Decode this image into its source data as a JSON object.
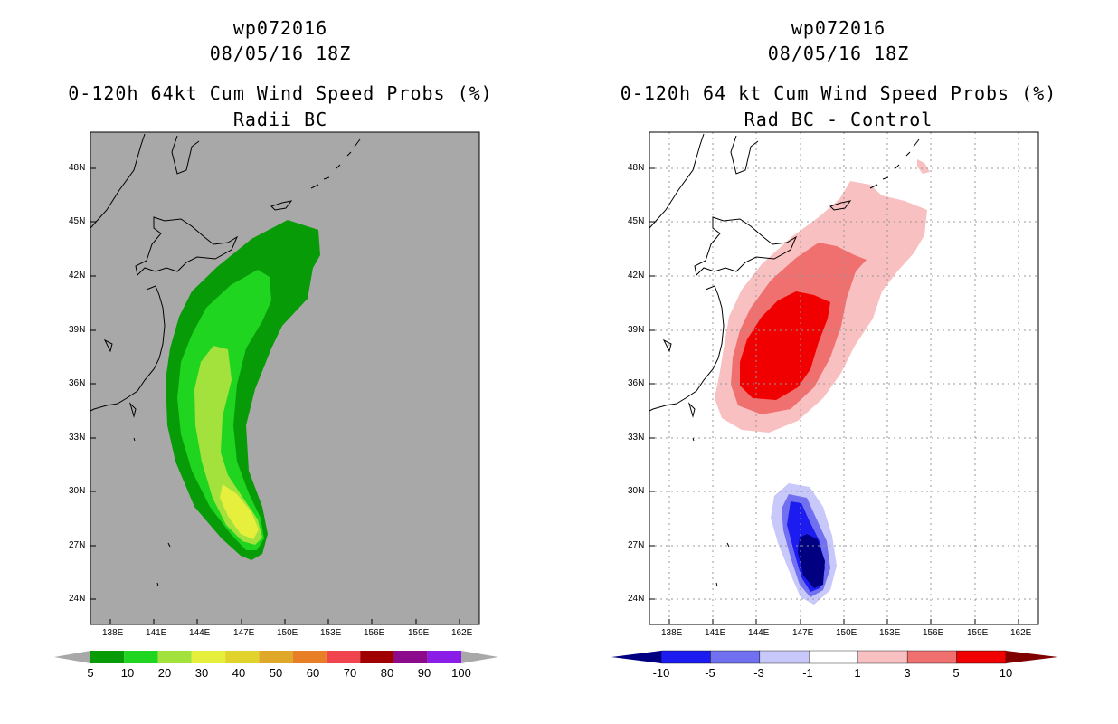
{
  "chart_data": [
    {
      "type": "heatmap",
      "title": [
        "wp072016",
        "08/05/16 18Z",
        "0-120h 64kt Cum Wind Speed Probs (%)",
        "Radii BC"
      ],
      "lon_ticks": [
        "138E",
        "141E",
        "144E",
        "147E",
        "150E",
        "153E",
        "156E",
        "159E",
        "162E"
      ],
      "lat_ticks": [
        "48N",
        "45N",
        "42N",
        "39N",
        "36N",
        "33N",
        "30N",
        "27N",
        "24N"
      ],
      "xlim": [
        137,
        163
      ],
      "ylim": [
        22.8,
        50.4
      ],
      "colorbar_levels": [
        "5",
        "10",
        "20",
        "30",
        "40",
        "50",
        "60",
        "70",
        "80",
        "90",
        "100"
      ],
      "colorbar_colors": [
        "#079b07",
        "#1fd51f",
        "#a3e23c",
        "#e6f03c",
        "#e2d22c",
        "#e0a828",
        "#e87f27",
        "#f0454f",
        "#a00000",
        "#8c0a8c",
        "#8a1ee6"
      ],
      "background_color": "#a8a8a8",
      "grid": false
    },
    {
      "type": "heatmap",
      "title": [
        "wp072016",
        "08/05/16 18Z",
        "0-120h 64 kt Cum Wind Speed Probs (%)",
        "Rad BC - Control"
      ],
      "lon_ticks": [
        "138E",
        "141E",
        "144E",
        "147E",
        "150E",
        "153E",
        "156E",
        "159E",
        "162E"
      ],
      "lat_ticks": [
        "48N",
        "45N",
        "42N",
        "39N",
        "36N",
        "33N",
        "30N",
        "27N",
        "24N"
      ],
      "xlim": [
        137,
        163
      ],
      "ylim": [
        22.8,
        50.4
      ],
      "colorbar_levels": [
        "-10",
        "-5",
        "-3",
        "-1",
        "1",
        "3",
        "5",
        "10"
      ],
      "colorbar_colors": [
        "#000080",
        "#1c1cf0",
        "#7070f0",
        "#c8c8fa",
        "#ffffff",
        "#f8c0c0",
        "#f07070",
        "#f00000",
        "#800000"
      ],
      "background_color": "#ffffff",
      "grid": true
    }
  ]
}
